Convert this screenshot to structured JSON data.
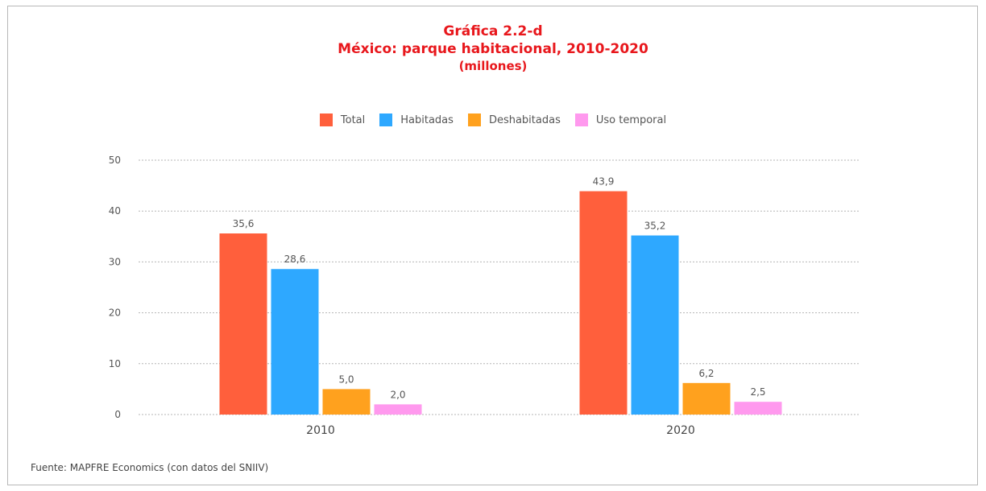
{
  "header": {
    "title": "Gráfica 2.2-d",
    "subtitle": "México: parque habitacional, 2010-2020",
    "units": "(millones)"
  },
  "footer": {
    "source": "Fuente: MAPFRE Economics (con datos del SNIIV)"
  },
  "chart_data": {
    "type": "bar",
    "categories": [
      "2010",
      "2020"
    ],
    "series": [
      {
        "name": "Total",
        "color": "#ff5f3c",
        "values": [
          35.6,
          43.9
        ],
        "labels": [
          "35,6",
          "43,9"
        ]
      },
      {
        "name": "Habitadas",
        "color": "#2ea8ff",
        "values": [
          28.6,
          35.2
        ],
        "labels": [
          "28,6",
          "35,2"
        ]
      },
      {
        "name": "Deshabitadas",
        "color": "#ffa11e",
        "values": [
          5.0,
          6.2
        ],
        "labels": [
          "5,0",
          "6,2"
        ]
      },
      {
        "name": "Uso temporal",
        "color": "#ff99ee",
        "values": [
          2.0,
          2.5
        ],
        "labels": [
          "2,0",
          "2,5"
        ]
      }
    ],
    "ylim": [
      0,
      50
    ],
    "yticks": [
      0,
      10,
      20,
      30,
      40,
      50
    ],
    "grid": true,
    "legend_position": "top-center"
  }
}
